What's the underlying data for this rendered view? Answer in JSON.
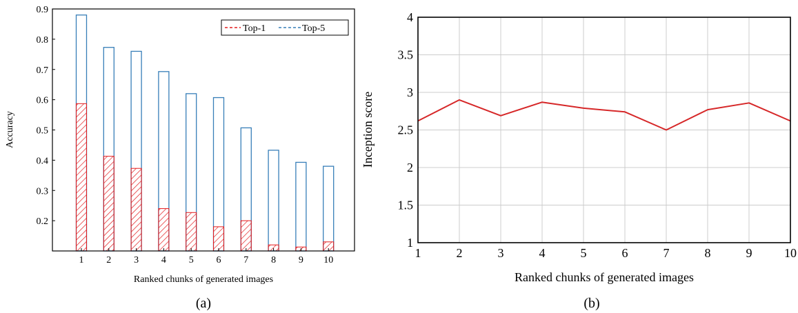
{
  "colors": {
    "top1": "#e41a1c",
    "top5": "#377eb8",
    "line": "#d62728",
    "grid": "#cccccc"
  },
  "chart_data": [
    {
      "type": "bar",
      "panel_label": "(a)",
      "xlabel": "Ranked chunks of generated images",
      "ylabel": "Accuracy",
      "categories": [
        "1",
        "2",
        "3",
        "4",
        "5",
        "6",
        "7",
        "8",
        "9",
        "10"
      ],
      "ylim": [
        0.1,
        0.9
      ],
      "yticks": [
        "0.2",
        "0.3",
        "0.4",
        "0.5",
        "0.6",
        "0.7",
        "0.8",
        "0.9"
      ],
      "grid": false,
      "legend_placement": "top-right",
      "series": [
        {
          "name": "Top-1",
          "style": "hatched",
          "values": [
            0.587,
            0.413,
            0.373,
            0.24,
            0.227,
            0.18,
            0.2,
            0.12,
            0.113,
            0.13
          ]
        },
        {
          "name": "Top-5",
          "style": "outline",
          "values": [
            0.88,
            0.773,
            0.76,
            0.693,
            0.62,
            0.607,
            0.507,
            0.433,
            0.393,
            0.38
          ]
        }
      ]
    },
    {
      "type": "line",
      "panel_label": "(b)",
      "xlabel": "Ranked chunks of generated images",
      "ylabel": "Inception score",
      "x": [
        1,
        2,
        3,
        4,
        5,
        6,
        7,
        8,
        9,
        10
      ],
      "xticks": [
        "1",
        "2",
        "3",
        "4",
        "5",
        "6",
        "7",
        "8",
        "9",
        "10"
      ],
      "xlim": [
        1,
        10
      ],
      "ylim": [
        1,
        4
      ],
      "yticks": [
        "1",
        "1.5",
        "2",
        "2.5",
        "3",
        "3.5",
        "4"
      ],
      "grid": true,
      "series": [
        {
          "values": [
            2.62,
            2.9,
            2.69,
            2.87,
            2.79,
            2.74,
            2.5,
            2.77,
            2.86,
            2.62
          ]
        }
      ]
    }
  ]
}
